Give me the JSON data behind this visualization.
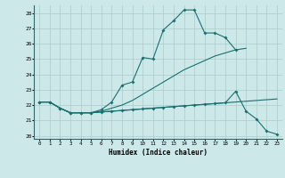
{
  "xlabel": "Humidex (Indice chaleur)",
  "bg_color": "#cce8e8",
  "grid_color": "#aacccc",
  "line_color": "#1a7070",
  "xlim": [
    -0.5,
    23.5
  ],
  "ylim": [
    19.8,
    28.5
  ],
  "xticks": [
    0,
    1,
    2,
    3,
    4,
    5,
    6,
    7,
    8,
    9,
    10,
    11,
    12,
    13,
    14,
    15,
    16,
    17,
    18,
    19,
    20,
    21,
    22,
    23
  ],
  "yticks": [
    20,
    21,
    22,
    23,
    24,
    25,
    26,
    27,
    28
  ],
  "series": [
    {
      "x": [
        0,
        1,
        2,
        3,
        4,
        5,
        6,
        7,
        8,
        9,
        10,
        11,
        12,
        13,
        14,
        15,
        16,
        17,
        18,
        19
      ],
      "y": [
        22.2,
        22.2,
        21.8,
        21.5,
        21.5,
        21.5,
        21.7,
        22.2,
        23.3,
        23.5,
        25.1,
        25.0,
        26.9,
        27.5,
        28.2,
        28.2,
        26.7,
        26.7,
        26.4,
        25.6
      ],
      "has_markers": true
    },
    {
      "x": [
        0,
        1,
        2,
        3,
        4,
        5,
        6,
        7,
        8,
        9,
        10,
        11,
        12,
        13,
        14,
        15,
        16,
        17,
        18,
        19,
        20,
        21,
        22,
        23
      ],
      "y": [
        22.2,
        22.2,
        21.8,
        21.5,
        21.5,
        21.5,
        21.55,
        21.6,
        21.65,
        21.7,
        21.75,
        21.8,
        21.85,
        21.9,
        21.95,
        22.0,
        22.05,
        22.1,
        22.15,
        22.2,
        22.25,
        22.3,
        22.35,
        22.4
      ],
      "has_markers": false
    },
    {
      "x": [
        0,
        1,
        2,
        3,
        4,
        5,
        6,
        7,
        8,
        9,
        10,
        11,
        12,
        13,
        14,
        15,
        16,
        17,
        18,
        19,
        20
      ],
      "y": [
        22.2,
        22.2,
        21.8,
        21.5,
        21.5,
        21.5,
        21.6,
        21.8,
        22.0,
        22.3,
        22.7,
        23.1,
        23.5,
        23.9,
        24.3,
        24.6,
        24.9,
        25.2,
        25.4,
        25.6,
        25.7
      ],
      "has_markers": false
    },
    {
      "x": [
        0,
        1,
        2,
        3,
        4,
        5,
        6,
        7,
        8,
        9,
        10,
        11,
        12,
        13,
        14,
        15,
        16,
        17,
        18,
        19,
        20,
        21,
        22,
        23
      ],
      "y": [
        22.2,
        22.2,
        21.8,
        21.5,
        21.5,
        21.5,
        21.55,
        21.6,
        21.65,
        21.7,
        21.75,
        21.8,
        21.85,
        21.9,
        21.95,
        22.0,
        22.05,
        22.1,
        22.15,
        22.9,
        21.6,
        21.1,
        20.3,
        20.1
      ],
      "has_markers": true
    }
  ]
}
